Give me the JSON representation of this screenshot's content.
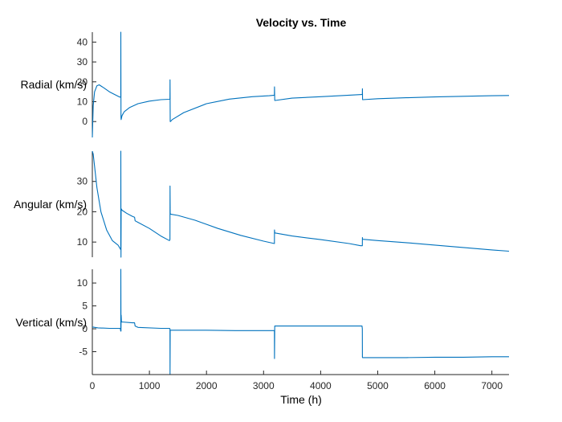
{
  "chart_data": {
    "type": "line",
    "title": "Velocity vs. Time",
    "xlabel": "Time (h)",
    "xlim": [
      0,
      7300
    ],
    "x_ticks": [
      0,
      1000,
      2000,
      3000,
      4000,
      5000,
      6000,
      7000
    ],
    "line_color": "#0072BD",
    "grid": false,
    "legend": "none",
    "subplots": [
      {
        "ylabel": "Radial (km/s)",
        "ylim": [
          -8,
          45
        ],
        "y_ticks": [
          0,
          10,
          20,
          30,
          40
        ],
        "series": [
          {
            "x": [
              0,
              15,
              40,
              80,
              120,
              200,
              300,
              400,
              480,
              498,
              500,
              502,
              505,
              520,
              560,
              650,
              800,
              1000,
              1200,
              1350,
              1360,
              1362,
              1365,
              1370,
              1400,
              1600,
              2000,
              2400,
              2800,
              3100,
              3190,
              3192,
              3195,
              3200,
              3500,
              4000,
              4500,
              4720,
              4730,
              4732,
              4735,
              4740,
              5000,
              5500,
              6000,
              6500,
              7000,
              7300
            ],
            "y": [
              -8,
              8,
              15,
              18,
              18.5,
              17,
              15,
              13.5,
              12.3,
              12.3,
              45,
              2,
              1,
              3,
              5,
              7,
              9,
              10.3,
              11,
              11.2,
              11.3,
              21,
              0,
              0,
              1,
              4.5,
              9,
              11.3,
              12.5,
              13,
              13.3,
              17.5,
              10.6,
              10.6,
              11.8,
              12.5,
              13.3,
              13.6,
              13.6,
              16.5,
              11,
              11,
              11.5,
              12,
              12.4,
              12.7,
              13,
              13.1
            ]
          }
        ]
      },
      {
        "ylabel": "Angular (km/s)",
        "ylim": [
          5,
          40
        ],
        "y_ticks": [
          10,
          20,
          30
        ],
        "series": [
          {
            "x": [
              0,
              15,
              40,
              80,
              150,
              250,
              350,
              450,
              498,
              500,
              502,
              505,
              520,
              600,
              700,
              740,
              750,
              800,
              1000,
              1200,
              1350,
              1360,
              1362,
              1365,
              1370,
              1500,
              1800,
              2200,
              2600,
              3000,
              3190,
              3192,
              3195,
              3200,
              3500,
              4000,
              4500,
              4700,
              4730,
              4732,
              4735,
              4740,
              5000,
              5500,
              6000,
              6500,
              7000,
              7300
            ],
            "y": [
              40,
              39,
              35,
              28,
              20,
              14,
              10.5,
              9,
              7.5,
              40,
              5,
              21,
              20.5,
              19.5,
              18.5,
              18.2,
              17,
              16.5,
              14.5,
              12,
              10.5,
              10.8,
              28.5,
              19.5,
              19.2,
              18.8,
              17.2,
              14.5,
              12.2,
              10.3,
              9.5,
              14,
              13,
              13,
              12,
              10.8,
              9.5,
              8.8,
              8.8,
              11.5,
              10.9,
              10.9,
              10.5,
              9.8,
              9.0,
              8.2,
              7.4,
              7.0
            ]
          }
        ]
      },
      {
        "ylabel": "Vertical (km/s)",
        "ylim": [
          -10,
          13
        ],
        "y_ticks": [
          -5,
          0,
          5,
          10
        ],
        "series": [
          {
            "x": [
              0,
              100,
              300,
              490,
              498,
              500,
              502,
              505,
              510,
              700,
              740,
              750,
              800,
              1200,
              1350,
              1360,
              1362,
              1365,
              1370,
              2000,
              2500,
              3000,
              3180,
              3190,
              3192,
              3195,
              3200,
              3500,
              4000,
              4500,
              4700,
              4725,
              4730,
              4732,
              4735,
              4740,
              5000,
              5500,
              6000,
              6500,
              7000,
              7300
            ],
            "y": [
              0.4,
              0.2,
              0.1,
              0.1,
              -0.5,
              13,
              -0.5,
              3,
              1.5,
              1.3,
              1.3,
              0.6,
              0.3,
              0.1,
              0.1,
              0,
              -10,
              -0.3,
              -0.3,
              -0.3,
              -0.4,
              -0.4,
              -0.4,
              -0.4,
              -6.5,
              0.6,
              0.6,
              0.6,
              0.6,
              0.6,
              0.6,
              0.6,
              0,
              -6.2,
              -6.3,
              -6.3,
              -6.3,
              -6.3,
              -6.2,
              -6.2,
              -6.1,
              -6.1
            ]
          }
        ]
      }
    ]
  }
}
